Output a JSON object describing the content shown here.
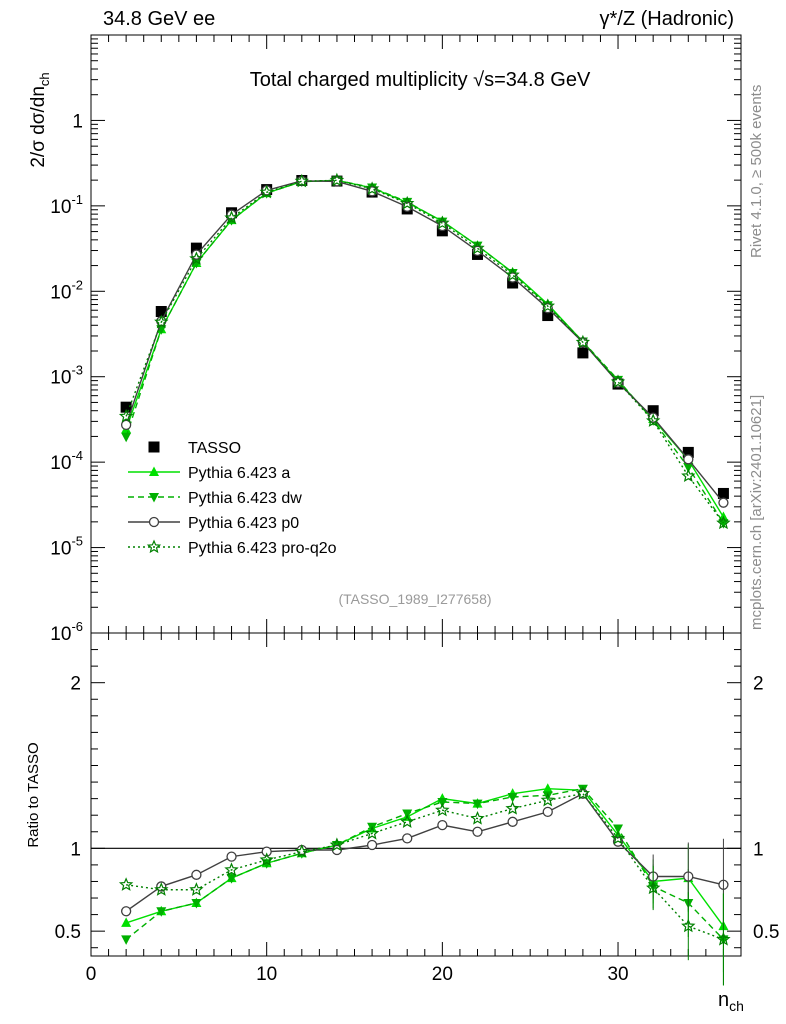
{
  "header": {
    "left": "34.8 GeV ee",
    "right": "γ*/Z (Hadronic)"
  },
  "sidebar": {
    "rivet": "Rivet 4.1.0, ≥ 500k events",
    "mcplots": "mcplots.cern.ch [arXiv:2401.10621]"
  },
  "chart_data": {
    "type": "line",
    "title": "Total charged multiplicity √s=34.8 GeV",
    "analysis_id": "(TASSO_1989_I277658)",
    "xlabel": "n_ch",
    "ylabel": "2/σ  dσ/dn_ch",
    "ratio_ylabel": "Ratio to TASSO",
    "xlim": [
      0,
      37
    ],
    "ylim": [
      1e-06,
      10
    ],
    "ratio_ylim": [
      0.35,
      2.3
    ],
    "yscale": "log",
    "x_ticks": [
      "0",
      "10",
      "20",
      "30"
    ],
    "y_ticks": [
      "10^-6",
      "10^-5",
      "10^-4",
      "10^-3",
      "10^-2",
      "10^-1",
      "1"
    ],
    "ratio_ticks": [
      "0.5",
      "1",
      "2"
    ],
    "x": [
      2,
      4,
      6,
      8,
      10,
      12,
      14,
      16,
      18,
      20,
      22,
      24,
      26,
      28,
      30,
      32,
      34,
      36
    ],
    "series": [
      {
        "name": "TASSO",
        "marker": "square",
        "color": "#000000",
        "values": [
          0.00044,
          0.0058,
          0.032,
          0.083,
          0.155,
          0.198,
          0.195,
          0.145,
          0.092,
          0.051,
          0.027,
          0.0125,
          0.0052,
          0.0019,
          0.00082,
          0.0004,
          0.00013,
          4.3e-05
        ]
      },
      {
        "name": "Pythia 6.423 a",
        "marker": "triangle-up",
        "color": "#00e000",
        "dash": "solid",
        "ratio": [
          0.55,
          0.62,
          0.67,
          0.82,
          0.91,
          0.97,
          1.02,
          1.12,
          1.19,
          1.3,
          1.27,
          1.33,
          1.36,
          1.35,
          1.08,
          0.8,
          0.82,
          0.53
        ]
      },
      {
        "name": "Pythia 6.423 dw",
        "marker": "triangle-down",
        "color": "#00b000",
        "dash": "dashed",
        "ratio": [
          0.45,
          0.62,
          0.67,
          0.82,
          0.91,
          0.97,
          1.02,
          1.13,
          1.21,
          1.28,
          1.27,
          1.31,
          1.32,
          1.36,
          1.12,
          0.77,
          0.67,
          0.45
        ]
      },
      {
        "name": "Pythia 6.423 p0",
        "marker": "circle-open",
        "color": "#404040",
        "dash": "solid",
        "ratio": [
          0.62,
          0.77,
          0.84,
          0.95,
          0.98,
          0.99,
          0.99,
          1.02,
          1.06,
          1.14,
          1.1,
          1.16,
          1.22,
          1.33,
          1.04,
          0.83,
          0.83,
          0.78
        ]
      },
      {
        "name": "Pythia 6.423 pro-q2o",
        "marker": "star-open",
        "color": "#008000",
        "dash": "dotted",
        "ratio": [
          0.78,
          0.75,
          0.75,
          0.87,
          0.93,
          0.98,
          1.02,
          1.09,
          1.16,
          1.23,
          1.18,
          1.24,
          1.29,
          1.33,
          1.06,
          0.76,
          0.53,
          0.45
        ]
      }
    ]
  }
}
